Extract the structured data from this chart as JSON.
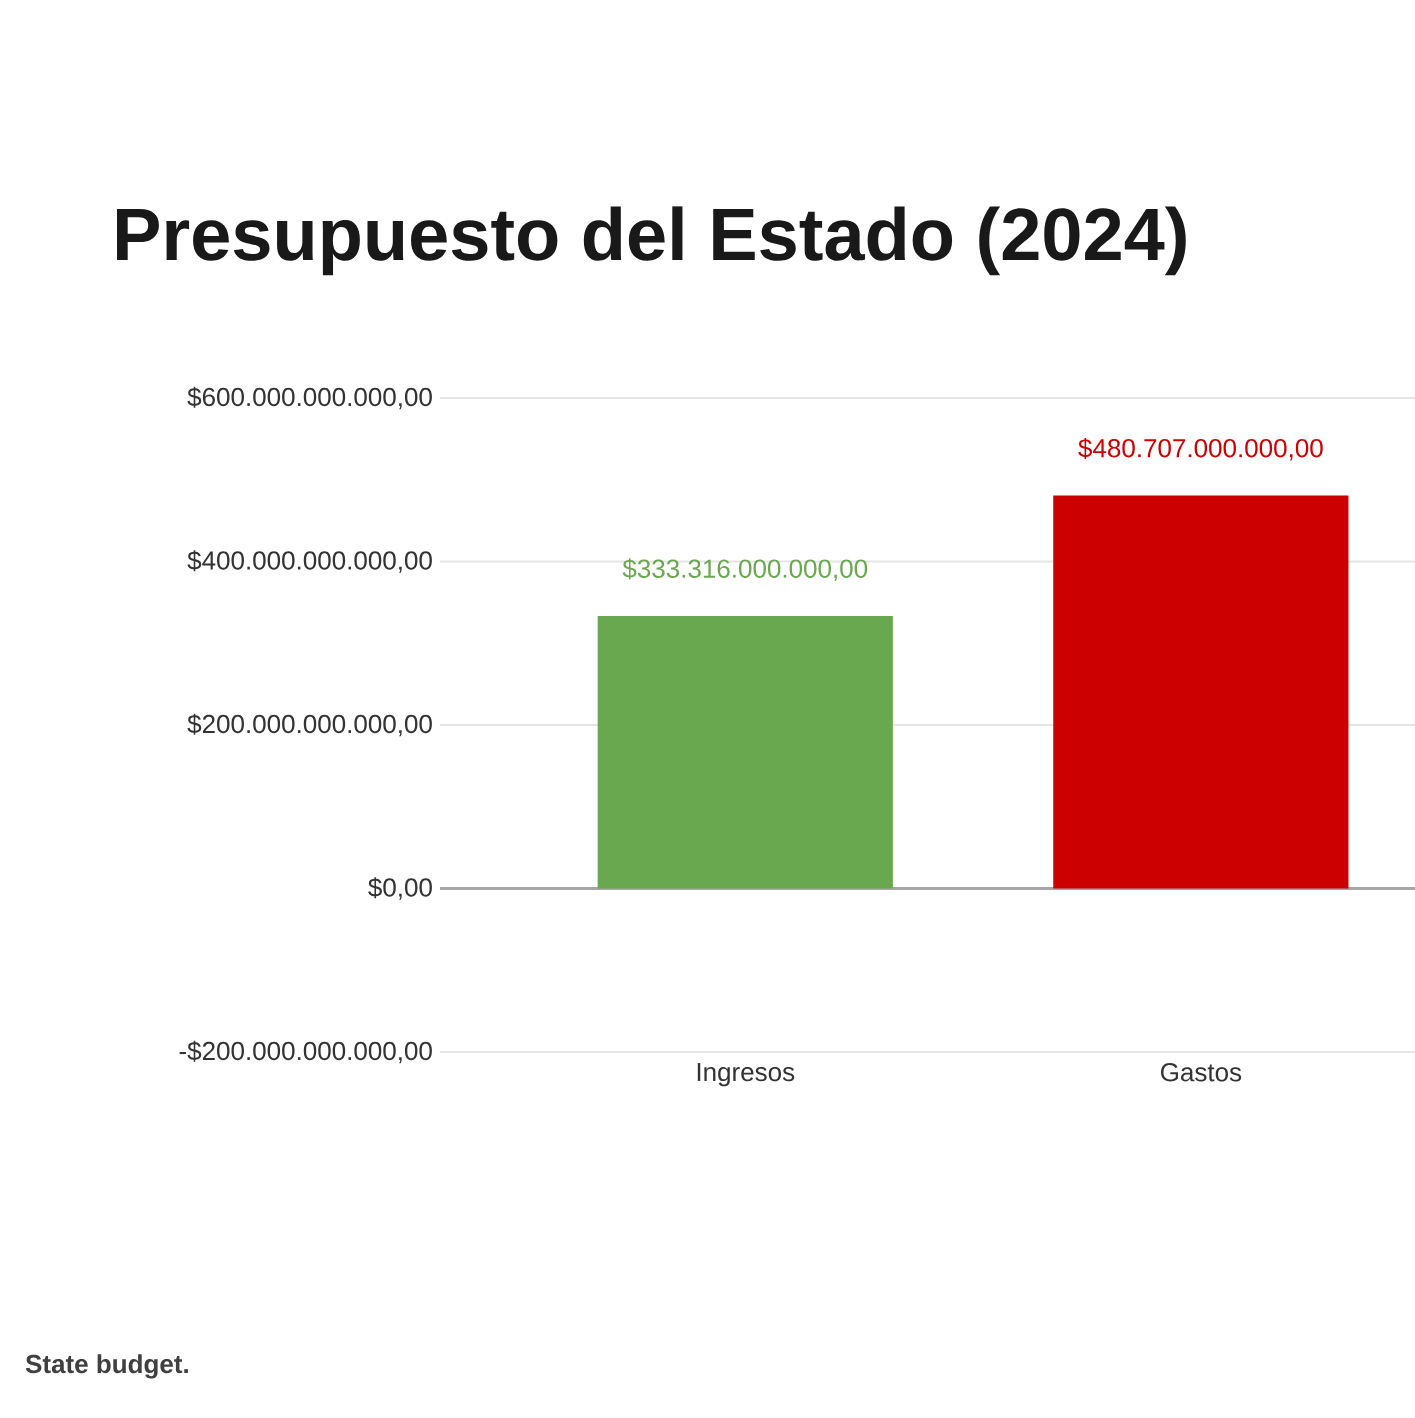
{
  "chart_data": {
    "type": "bar",
    "title": "Presupuesto del Estado (2024)",
    "categories": [
      "Ingresos",
      "Gastos"
    ],
    "values": [
      333316000000,
      480707000000
    ],
    "colors": [
      "#6aa84f",
      "#cc0000"
    ],
    "value_labels": [
      "$333.316.000.000,00",
      "$480.707.000.000,00"
    ],
    "ylim": [
      -200000000000,
      600000000000
    ],
    "yticks": [
      {
        "value": -200000000000,
        "label": "-$200.000.000.000,00"
      },
      {
        "value": 0,
        "label": "$0,00"
      },
      {
        "value": 200000000000,
        "label": "$200.000.000.000,00"
      },
      {
        "value": 400000000000,
        "label": "$400.000.000.000,00"
      },
      {
        "value": 600000000000,
        "label": "$600.000.000.000,00"
      }
    ],
    "grid": "y",
    "annotations": [
      "State budget."
    ]
  }
}
